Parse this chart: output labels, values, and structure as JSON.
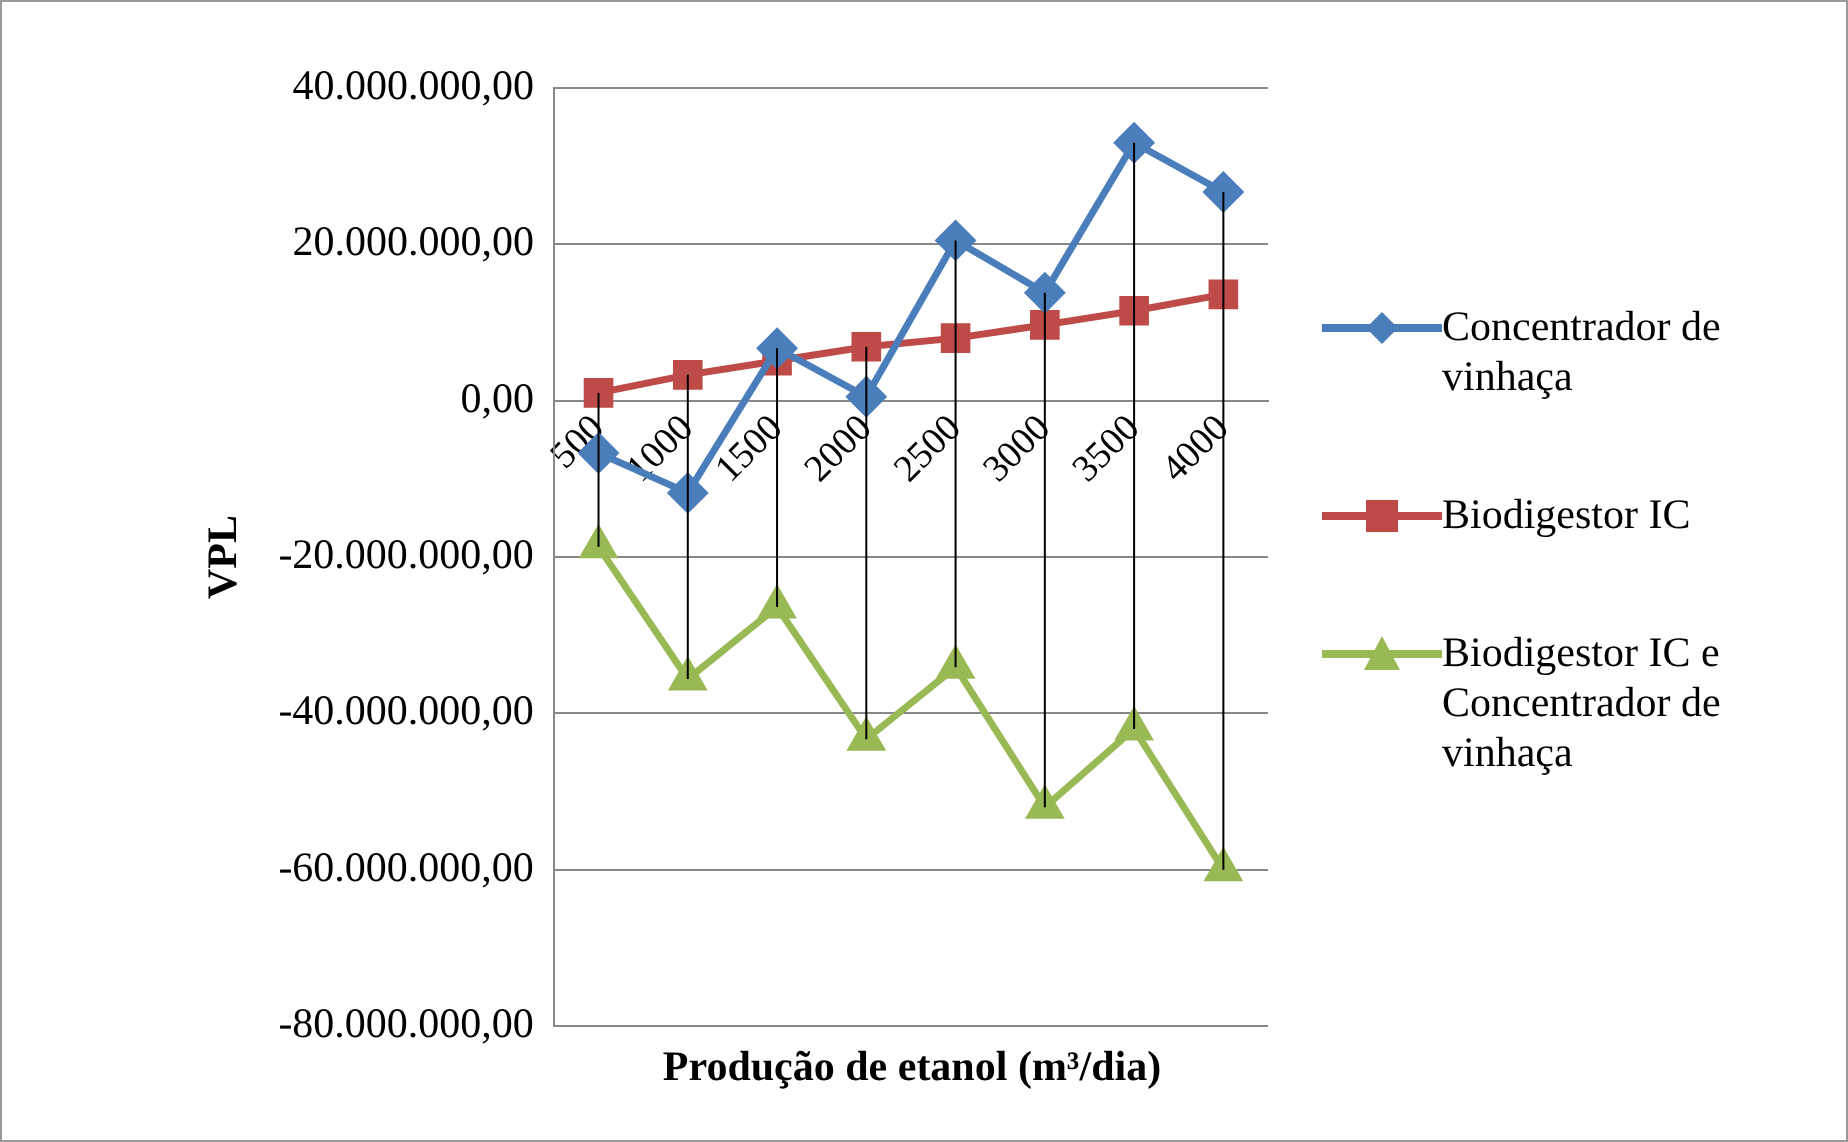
{
  "chart_data": {
    "type": "line",
    "xlabel": "Produção de etanol (m³/dia)",
    "ylabel": "VPL",
    "categories": [
      "500",
      "1000",
      "1500",
      "2000",
      "2500",
      "3000",
      "3500",
      "4000"
    ],
    "series": [
      {
        "name": "Concentrador de vinhaça",
        "color": "#4a7ebb",
        "marker": "diamond",
        "values": [
          -6700000,
          -11800000,
          6700000,
          500000,
          20500000,
          13800000,
          33000000,
          26700000
        ]
      },
      {
        "name": "Biodigestor IC",
        "color": "#be4b48",
        "marker": "square",
        "values": [
          1000000,
          3300000,
          5100000,
          6900000,
          8000000,
          9700000,
          11500000,
          13600000
        ],
        "errors": [
          [
            -18700000,
            1000000
          ],
          [
            -35600000,
            3300000
          ],
          [
            -26400000,
            6700000
          ],
          [
            -43300000,
            6900000
          ],
          [
            -34100000,
            20500000
          ],
          [
            -52000000,
            13800000
          ],
          [
            -42000000,
            33000000
          ],
          [
            -60000000,
            26700000
          ]
        ]
      },
      {
        "name": " Biodigestor IC e Concentrador de vinhaça",
        "color": "#98b954",
        "marker": "triangle",
        "values": [
          -18700000,
          -35600000,
          -26400000,
          -43300000,
          -34100000,
          -52000000,
          -42000000,
          -60000000
        ]
      }
    ],
    "ylim": [
      -80000000,
      40000000
    ],
    "yticks": [
      {
        "value": 40000000,
        "label": "40.000.000,00"
      },
      {
        "value": 20000000,
        "label": "20.000.000,00"
      },
      {
        "value": 0,
        "label": "0,00"
      },
      {
        "value": -20000000,
        "label": "-20.000.000,00"
      },
      {
        "value": -40000000,
        "label": "-40.000.000,00"
      },
      {
        "value": -60000000,
        "label": "-60.000.000,00"
      },
      {
        "value": -80000000,
        "label": "-80.000.000,00"
      }
    ],
    "grid": "y",
    "legend": "right",
    "line_style": "solid"
  }
}
